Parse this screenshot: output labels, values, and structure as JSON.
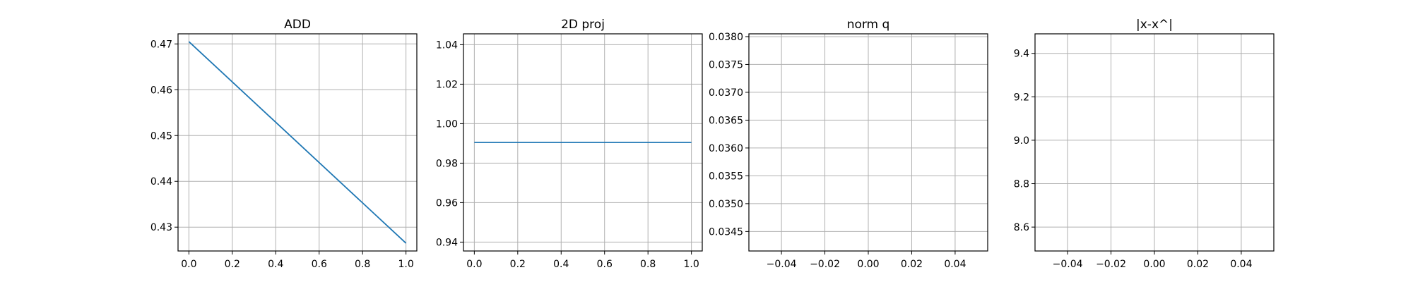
{
  "chart_data": [
    {
      "type": "line",
      "title": "ADD",
      "xlabel": "",
      "ylabel": "",
      "xlim": [
        -0.05,
        1.05
      ],
      "ylim": [
        0.4248,
        0.4722
      ],
      "x_ticks": [
        "0.0",
        "0.2",
        "0.4",
        "0.6",
        "0.8",
        "1.0"
      ],
      "y_ticks": [
        "0.43",
        "0.44",
        "0.45",
        "0.46",
        "0.47"
      ],
      "grid": true,
      "series": [
        {
          "x": [
            0.0,
            1.0
          ],
          "y": [
            0.4705,
            0.4265
          ],
          "color": "#1f77b4"
        }
      ]
    },
    {
      "type": "line",
      "title": "2D proj",
      "xlabel": "",
      "ylabel": "",
      "xlim": [
        -0.05,
        1.05
      ],
      "ylim": [
        0.9355,
        1.0455
      ],
      "x_ticks": [
        "0.0",
        "0.2",
        "0.4",
        "0.6",
        "0.8",
        "1.0"
      ],
      "y_ticks": [
        "0.94",
        "0.96",
        "0.98",
        "1.00",
        "1.02",
        "1.04"
      ],
      "grid": true,
      "series": [
        {
          "x": [
            0.0,
            1.0
          ],
          "y": [
            0.9905,
            0.9905
          ],
          "color": "#1f77b4"
        }
      ]
    },
    {
      "type": "line",
      "title": "norm q",
      "xlabel": "",
      "ylabel": "",
      "xlim": [
        -0.055,
        0.055
      ],
      "ylim": [
        0.03415,
        0.03805
      ],
      "x_ticks": [
        "−0.04",
        "−0.02",
        "0.00",
        "0.02",
        "0.04"
      ],
      "y_ticks": [
        "0.0345",
        "0.0350",
        "0.0355",
        "0.0360",
        "0.0365",
        "0.0370",
        "0.0375",
        "0.0380"
      ],
      "grid": true,
      "series": []
    },
    {
      "type": "line",
      "title": "|x-x^|",
      "xlabel": "",
      "ylabel": "",
      "xlim": [
        -0.055,
        0.055
      ],
      "ylim": [
        8.49,
        9.49
      ],
      "x_ticks": [
        "−0.04",
        "−0.02",
        "0.00",
        "0.02",
        "0.04"
      ],
      "y_ticks": [
        "8.6",
        "8.8",
        "9.0",
        "9.2",
        "9.4"
      ],
      "grid": true,
      "series": []
    }
  ]
}
